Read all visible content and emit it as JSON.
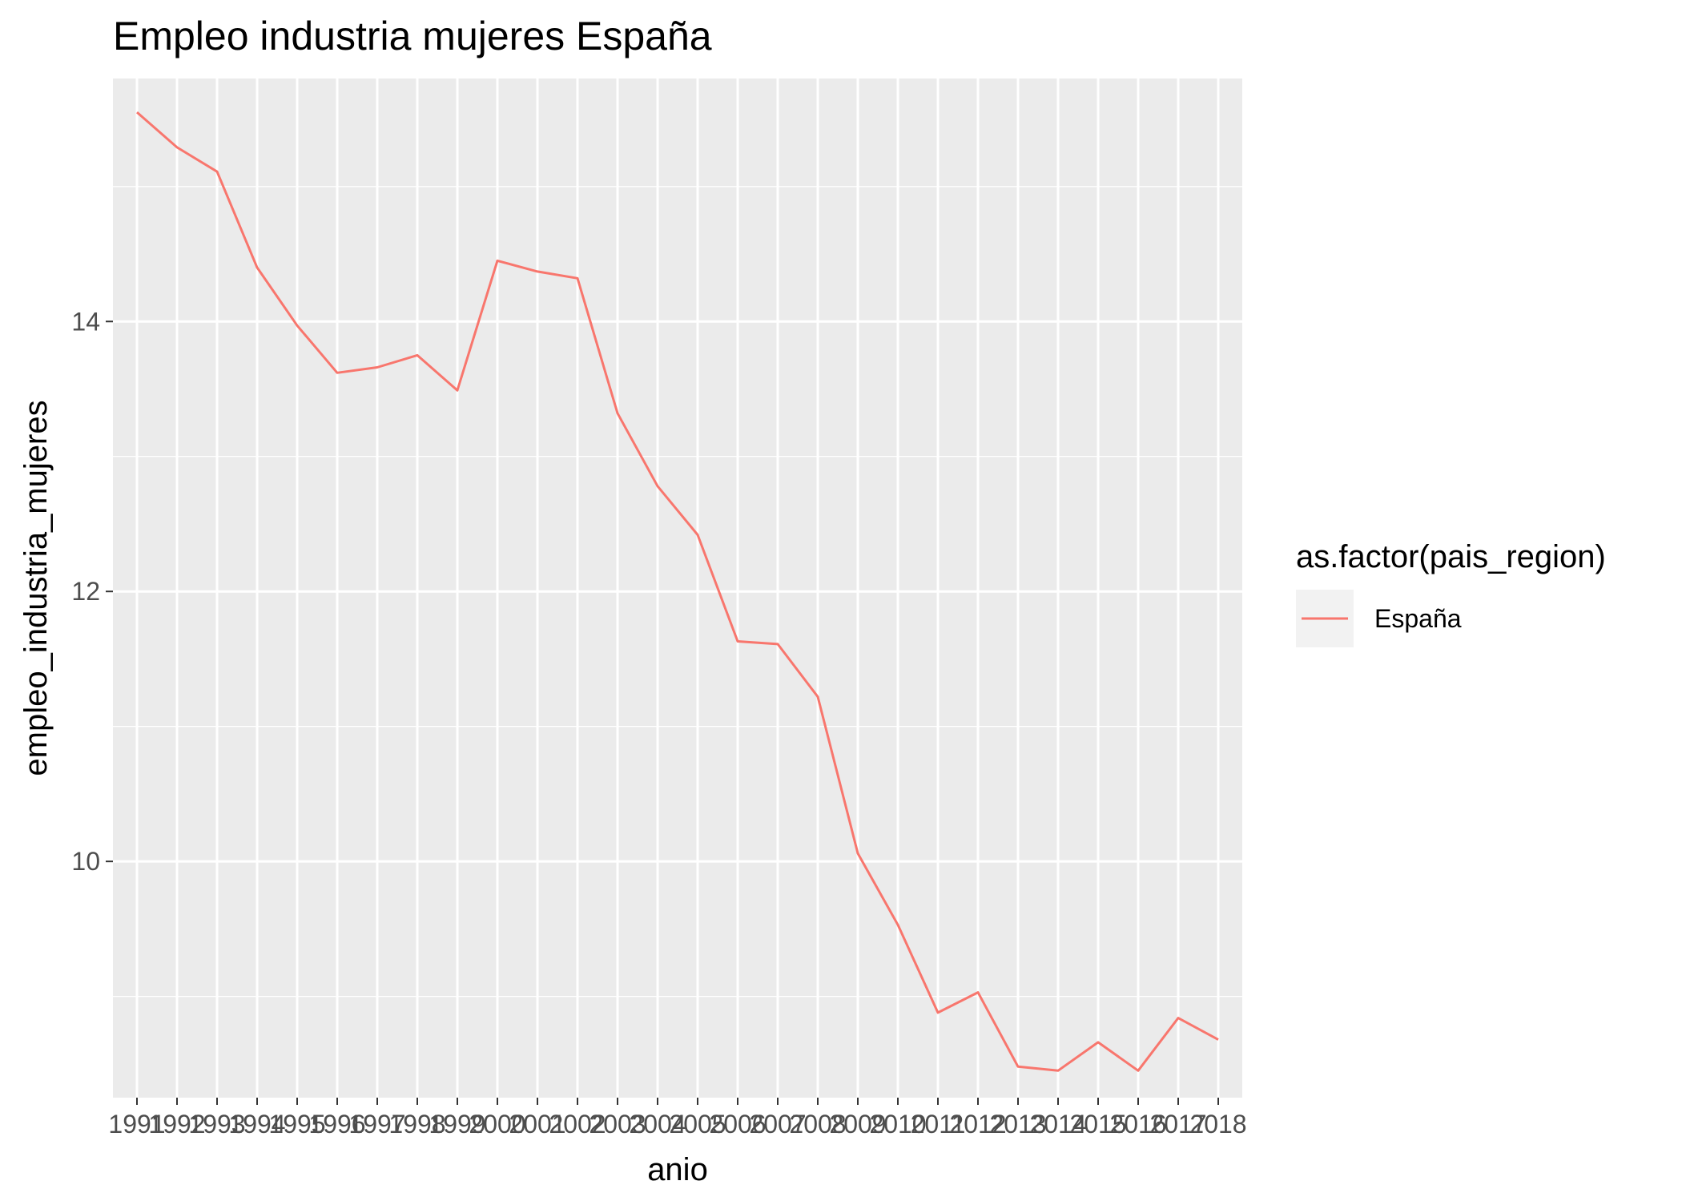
{
  "chart_data": {
    "type": "line",
    "title": "Empleo industria mujeres España",
    "xlabel": "anio",
    "ylabel": "empleo_industria_mujeres",
    "categories": [
      "1991",
      "1992",
      "1993",
      "1994",
      "1995",
      "1996",
      "1997",
      "1998",
      "1999",
      "2000",
      "2001",
      "2002",
      "2003",
      "2004",
      "2005",
      "2006",
      "2007",
      "2008",
      "2009",
      "2010",
      "2011",
      "2012",
      "2013",
      "2014",
      "2015",
      "2016",
      "2017",
      "2018"
    ],
    "series": [
      {
        "name": "España",
        "color": "#F8766D",
        "values": [
          15.55,
          15.29,
          15.11,
          14.4,
          13.97,
          13.62,
          13.66,
          13.75,
          13.49,
          14.45,
          14.37,
          14.32,
          13.32,
          12.78,
          12.42,
          11.63,
          11.61,
          11.22,
          10.06,
          9.53,
          8.88,
          9.03,
          8.48,
          8.45,
          8.66,
          8.45,
          8.84,
          8.68
        ]
      }
    ],
    "ylim": [
      8.25,
      15.8
    ],
    "yticks": [
      10,
      12,
      14
    ],
    "grid": true,
    "panel_background": "#EBEBEB",
    "legend": {
      "title": "as.factor(pais_region)",
      "placement": "right",
      "entries": [
        "España"
      ]
    }
  }
}
